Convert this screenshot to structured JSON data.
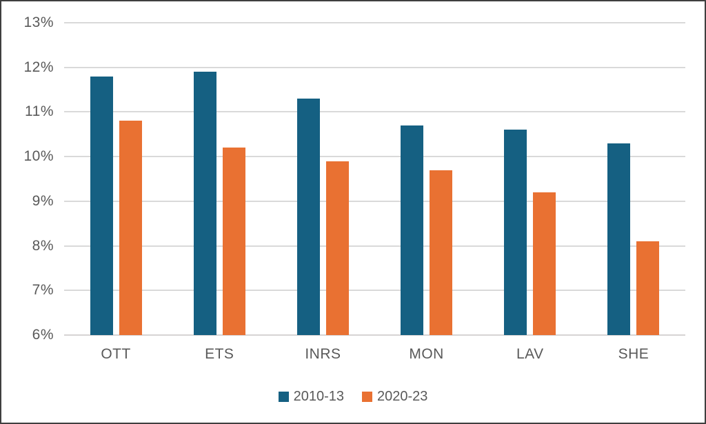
{
  "chart_data": {
    "type": "bar",
    "title": "",
    "xlabel": "",
    "ylabel": "",
    "categories": [
      "OTT",
      "ETS",
      "INRS",
      "MON",
      "LAV",
      "SHE"
    ],
    "series": [
      {
        "name": "2010-13",
        "color": "#156082",
        "values": [
          11.8,
          11.9,
          11.3,
          10.7,
          10.6,
          10.3
        ]
      },
      {
        "name": "2020-23",
        "color": "#E97132",
        "values": [
          10.8,
          10.2,
          9.9,
          9.7,
          9.2,
          8.1
        ]
      }
    ],
    "ylim": [
      6,
      13
    ],
    "ytick_labels": [
      "13%",
      "12%",
      "11%",
      "10%",
      "9%",
      "8%",
      "7%",
      "6%"
    ],
    "grid": "horizontal",
    "legend_position": "bottom"
  },
  "colors": {
    "gridline": "#D9D9D9",
    "axis_line": "#D6D3D3",
    "tick_text": "#595959",
    "frame_border": "#3F3F3F",
    "background": "#FFFFFF"
  }
}
